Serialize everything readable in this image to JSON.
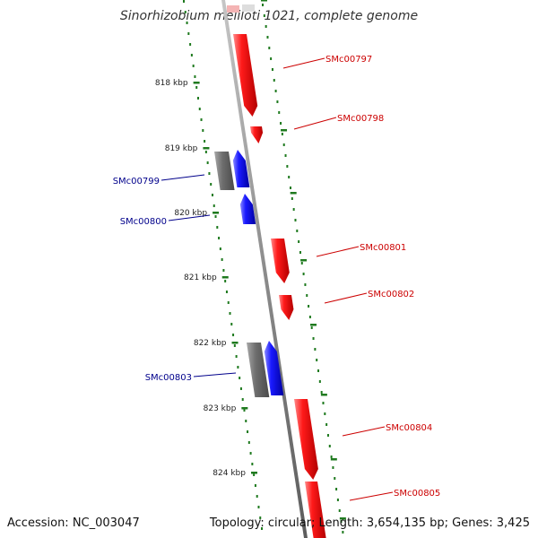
{
  "title": "Sinorhizobium meliloti 1021, complete genome",
  "footer": {
    "accession": "Accession: NC_003047",
    "summary": "Topology: circular; Length: 3,654,135 bp; Genes: 3,425"
  },
  "colors": {
    "forward_gene": "#ff0000",
    "reverse_gene": "#0000ff",
    "pseudo_gene": "#707070",
    "forward_label": "#cc0000",
    "reverse_label": "#00008b",
    "backbone": "#8c8c8c",
    "ticks": "#1f7a1f"
  },
  "ticks": [
    "818 kbp",
    "819 kbp",
    "820 kbp",
    "821 kbp",
    "822 kbp",
    "823 kbp",
    "824 kbp"
  ],
  "genes": [
    {
      "label": "SMc00797",
      "strand": "forward"
    },
    {
      "label": "SMc00798",
      "strand": "forward"
    },
    {
      "label": "SMc00799",
      "strand": "reverse"
    },
    {
      "label": "SMc00800",
      "strand": "reverse"
    },
    {
      "label": "SMc00801",
      "strand": "forward"
    },
    {
      "label": "SMc00802",
      "strand": "forward"
    },
    {
      "label": "SMc00803",
      "strand": "reverse"
    },
    {
      "label": "SMc00804",
      "strand": "forward"
    },
    {
      "label": "SMc00805",
      "strand": "forward"
    }
  ]
}
